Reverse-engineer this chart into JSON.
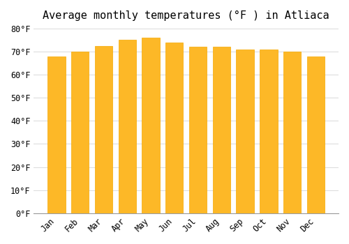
{
  "title": "Average monthly temperatures (°F ) in Atliaca",
  "months": [
    "Jan",
    "Feb",
    "Mar",
    "Apr",
    "May",
    "Jun",
    "Jul",
    "Aug",
    "Sep",
    "Oct",
    "Nov",
    "Dec"
  ],
  "values": [
    68,
    70,
    72.5,
    75,
    76,
    74,
    72,
    72,
    71,
    71,
    70,
    68
  ],
  "bar_color_main": "#FDB827",
  "bar_color_edge": "#F5A800",
  "ylim": [
    0,
    80
  ],
  "yticks": [
    0,
    10,
    20,
    30,
    40,
    50,
    60,
    70,
    80
  ],
  "ylabel_suffix": "°F",
  "background_color": "#ffffff",
  "plot_bg_color": "#ffffff",
  "grid_color": "#dddddd",
  "title_fontsize": 11,
  "tick_fontsize": 8.5
}
